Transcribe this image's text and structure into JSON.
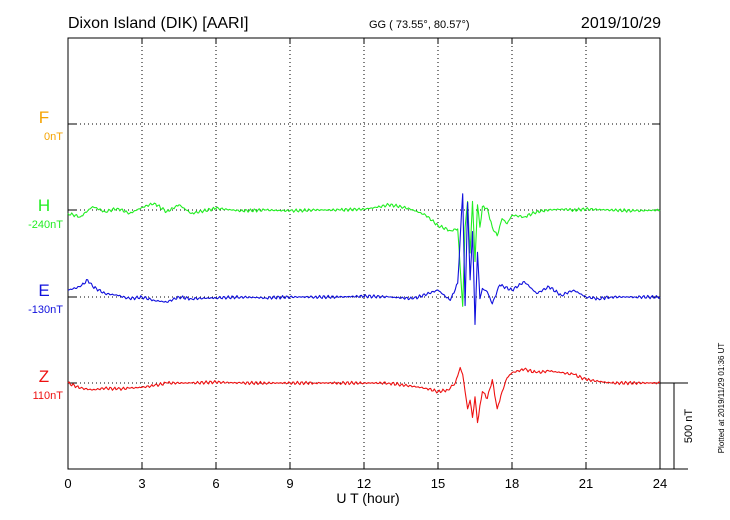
{
  "header": {
    "station": "Dixon Island (DIK)  [AARI]",
    "coords": "GG ( 73.55°,  80.57°)",
    "date": "2019/10/29"
  },
  "side_note": "Plotted at 2019/11/29 01:36 UT",
  "scale_label": "500 nT",
  "colors": {
    "F": "#f5a300",
    "H": "#22ee22",
    "E": "#1010dd",
    "Z": "#ee1111",
    "grid": "#000000"
  },
  "chart_data": {
    "type": "line",
    "xlabel": "U T (hour)",
    "xlim": [
      0,
      24
    ],
    "x_ticks": [
      "0",
      "3",
      "6",
      "9",
      "12",
      "15",
      "18",
      "21",
      "24"
    ],
    "scale_bar_nT": 500,
    "series": [
      {
        "name": "F",
        "baseline": "0nT",
        "values": []
      },
      {
        "name": "H",
        "baseline": "-240nT",
        "x": [
          0,
          0.5,
          1,
          1.5,
          2,
          2.5,
          3,
          3.5,
          4,
          4.5,
          5,
          6,
          7,
          8,
          9,
          10,
          11,
          12,
          12.5,
          13,
          13.5,
          14,
          14.5,
          15,
          15.5,
          15.8,
          16,
          16.1,
          16.2,
          16.3,
          16.4,
          16.5,
          16.6,
          16.7,
          16.8,
          17,
          17.2,
          17.4,
          17.6,
          17.8,
          18,
          18.5,
          19,
          19.5,
          20,
          20.5,
          21,
          22,
          23,
          24
        ],
        "values": [
          -20,
          -40,
          20,
          -10,
          10,
          -20,
          15,
          40,
          -10,
          30,
          -20,
          10,
          -5,
          0,
          -5,
          0,
          0,
          5,
          15,
          30,
          20,
          0,
          -30,
          -90,
          -120,
          -110,
          -560,
          -100,
          50,
          -250,
          50,
          -300,
          30,
          -100,
          20,
          10,
          -100,
          -150,
          -50,
          -80,
          -30,
          -40,
          -10,
          0,
          5,
          0,
          5,
          0,
          -5,
          0
        ]
      },
      {
        "name": "E",
        "baseline": "-130nT",
        "x": [
          0,
          0.5,
          0.8,
          1,
          1.5,
          2,
          2.5,
          3,
          3.5,
          4,
          4.5,
          5,
          6,
          7,
          8,
          9,
          10,
          11,
          12,
          13,
          14,
          15,
          15.5,
          15.8,
          16,
          16.1,
          16.2,
          16.3,
          16.4,
          16.5,
          16.6,
          16.7,
          16.8,
          17,
          17.2,
          17.5,
          18,
          18.5,
          19,
          19.5,
          20,
          20.5,
          21,
          21.5,
          22,
          23,
          24
        ],
        "values": [
          40,
          60,
          100,
          60,
          20,
          10,
          -10,
          0,
          -20,
          -30,
          0,
          -10,
          -5,
          0,
          -5,
          0,
          0,
          0,
          5,
          0,
          -10,
          40,
          -20,
          80,
          600,
          -50,
          550,
          100,
          380,
          -160,
          260,
          -10,
          50,
          30,
          -40,
          70,
          40,
          90,
          20,
          60,
          10,
          40,
          0,
          -10,
          0,
          0,
          0
        ]
      },
      {
        "name": "Z",
        "baseline": "110nT",
        "x": [
          0,
          0.5,
          1,
          1.5,
          2,
          2.5,
          3,
          3.5,
          4,
          5,
          6,
          7,
          8,
          9,
          10,
          11,
          12,
          13,
          13.5,
          14,
          14.5,
          15,
          15.4,
          15.7,
          15.9,
          16,
          16.1,
          16.2,
          16.3,
          16.4,
          16.5,
          16.6,
          16.8,
          17,
          17.2,
          17.4,
          17.6,
          17.8,
          18,
          18.5,
          19,
          19.5,
          20,
          20.5,
          21,
          21.5,
          22,
          23,
          24
        ],
        "values": [
          0,
          -30,
          -40,
          -30,
          -35,
          -30,
          -25,
          -15,
          0,
          0,
          5,
          0,
          0,
          0,
          0,
          0,
          0,
          0,
          -10,
          -20,
          -30,
          -50,
          -40,
          0,
          90,
          50,
          -50,
          -150,
          -100,
          -200,
          -80,
          -230,
          -50,
          -90,
          20,
          -150,
          -50,
          30,
          60,
          80,
          60,
          70,
          60,
          50,
          20,
          10,
          0,
          0,
          0
        ]
      }
    ]
  }
}
